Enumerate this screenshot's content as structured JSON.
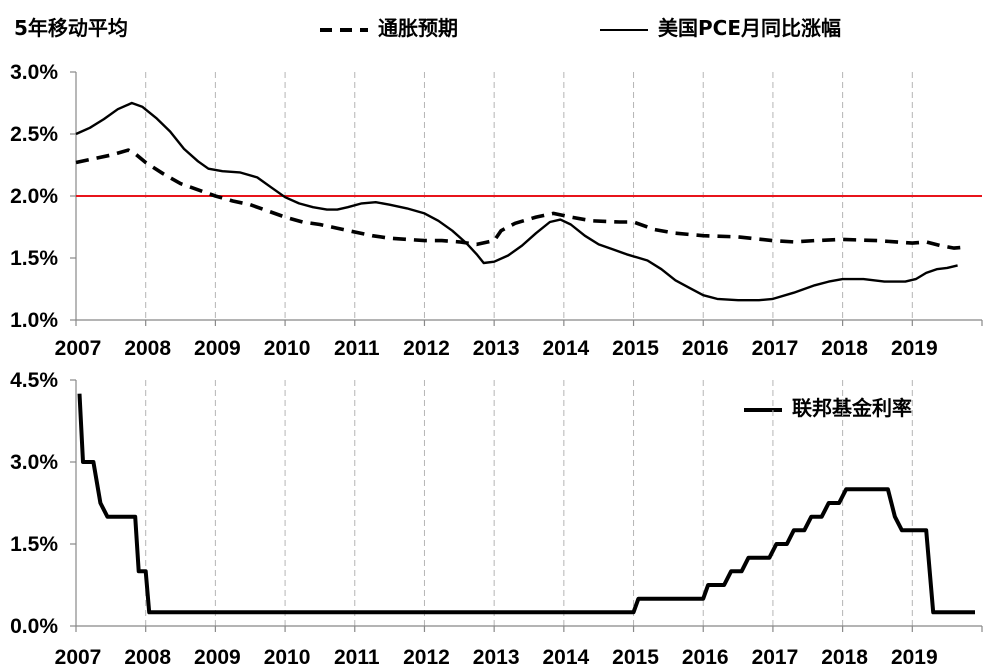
{
  "chart_data": [
    {
      "type": "line",
      "ylabel": "5年移动平均",
      "years": [
        "2007",
        "2008",
        "2009",
        "2010",
        "2011",
        "2012",
        "2013",
        "2014",
        "2015",
        "2016",
        "2017",
        "2018",
        "2019"
      ],
      "yticks": [
        "1.0%",
        "1.5%",
        "2.0%",
        "2.5%",
        "3.0%"
      ],
      "ylim": [
        1.0,
        3.0
      ],
      "xlim": [
        2007.0,
        2020.0
      ],
      "grid": "vertical dashed gridlines at each year",
      "reference_line": {
        "y": 2.0,
        "color": "#e8141b"
      },
      "series": [
        {
          "name": "通胀预期",
          "style": "dashed",
          "color": "#000000",
          "points": [
            [
              2007.0,
              2.27
            ],
            [
              2007.25,
              2.3
            ],
            [
              2007.5,
              2.33
            ],
            [
              2007.75,
              2.37
            ],
            [
              2007.85,
              2.34
            ],
            [
              2008.0,
              2.27
            ],
            [
              2008.25,
              2.18
            ],
            [
              2008.5,
              2.1
            ],
            [
              2008.75,
              2.05
            ],
            [
              2009.0,
              2.0
            ],
            [
              2009.25,
              1.96
            ],
            [
              2009.5,
              1.93
            ],
            [
              2009.75,
              1.88
            ],
            [
              2010.0,
              1.83
            ],
            [
              2010.25,
              1.79
            ],
            [
              2010.5,
              1.77
            ],
            [
              2010.75,
              1.74
            ],
            [
              2011.0,
              1.71
            ],
            [
              2011.25,
              1.68
            ],
            [
              2011.5,
              1.66
            ],
            [
              2011.75,
              1.65
            ],
            [
              2012.0,
              1.64
            ],
            [
              2012.25,
              1.64
            ],
            [
              2012.5,
              1.63
            ],
            [
              2012.75,
              1.61
            ],
            [
              2013.0,
              1.64
            ],
            [
              2013.1,
              1.72
            ],
            [
              2013.3,
              1.78
            ],
            [
              2013.6,
              1.83
            ],
            [
              2013.85,
              1.86
            ],
            [
              2014.1,
              1.83
            ],
            [
              2014.4,
              1.8
            ],
            [
              2014.8,
              1.79
            ],
            [
              2015.0,
              1.79
            ],
            [
              2015.3,
              1.73
            ],
            [
              2015.6,
              1.7
            ],
            [
              2016.0,
              1.68
            ],
            [
              2016.5,
              1.67
            ],
            [
              2017.0,
              1.64
            ],
            [
              2017.3,
              1.63
            ],
            [
              2017.6,
              1.64
            ],
            [
              2018.0,
              1.65
            ],
            [
              2018.5,
              1.64
            ],
            [
              2019.0,
              1.62
            ],
            [
              2019.2,
              1.63
            ],
            [
              2019.4,
              1.6
            ],
            [
              2019.6,
              1.58
            ],
            [
              2019.8,
              1.59
            ]
          ]
        },
        {
          "name": "美国PCE月同比涨幅",
          "style": "solid",
          "color": "#000000",
          "points": [
            [
              2007.0,
              2.5
            ],
            [
              2007.2,
              2.55
            ],
            [
              2007.4,
              2.62
            ],
            [
              2007.6,
              2.7
            ],
            [
              2007.8,
              2.75
            ],
            [
              2007.95,
              2.72
            ],
            [
              2008.15,
              2.63
            ],
            [
              2008.35,
              2.52
            ],
            [
              2008.55,
              2.38
            ],
            [
              2008.75,
              2.28
            ],
            [
              2008.9,
              2.22
            ],
            [
              2009.1,
              2.2
            ],
            [
              2009.35,
              2.19
            ],
            [
              2009.6,
              2.15
            ],
            [
              2009.8,
              2.07
            ],
            [
              2010.0,
              1.99
            ],
            [
              2010.2,
              1.94
            ],
            [
              2010.4,
              1.91
            ],
            [
              2010.6,
              1.89
            ],
            [
              2010.75,
              1.89
            ],
            [
              2010.9,
              1.91
            ],
            [
              2011.1,
              1.94
            ],
            [
              2011.3,
              1.95
            ],
            [
              2011.5,
              1.93
            ],
            [
              2011.75,
              1.9
            ],
            [
              2012.0,
              1.86
            ],
            [
              2012.2,
              1.8
            ],
            [
              2012.4,
              1.72
            ],
            [
              2012.6,
              1.62
            ],
            [
              2012.75,
              1.53
            ],
            [
              2012.85,
              1.46
            ],
            [
              2013.0,
              1.47
            ],
            [
              2013.2,
              1.52
            ],
            [
              2013.4,
              1.6
            ],
            [
              2013.6,
              1.7
            ],
            [
              2013.8,
              1.79
            ],
            [
              2013.95,
              1.81
            ],
            [
              2014.1,
              1.77
            ],
            [
              2014.3,
              1.68
            ],
            [
              2014.5,
              1.61
            ],
            [
              2014.7,
              1.57
            ],
            [
              2014.9,
              1.53
            ],
            [
              2015.2,
              1.48
            ],
            [
              2015.4,
              1.41
            ],
            [
              2015.6,
              1.32
            ],
            [
              2015.8,
              1.26
            ],
            [
              2016.0,
              1.2
            ],
            [
              2016.2,
              1.17
            ],
            [
              2016.5,
              1.16
            ],
            [
              2016.8,
              1.16
            ],
            [
              2017.0,
              1.17
            ],
            [
              2017.3,
              1.22
            ],
            [
              2017.6,
              1.28
            ],
            [
              2017.8,
              1.31
            ],
            [
              2018.0,
              1.33
            ],
            [
              2018.3,
              1.33
            ],
            [
              2018.6,
              1.31
            ],
            [
              2018.9,
              1.31
            ],
            [
              2019.05,
              1.33
            ],
            [
              2019.2,
              1.38
            ],
            [
              2019.35,
              1.41
            ],
            [
              2019.5,
              1.42
            ],
            [
              2019.65,
              1.44
            ]
          ]
        }
      ]
    },
    {
      "type": "line",
      "years": [
        "2007",
        "2008",
        "2009",
        "2010",
        "2011",
        "2012",
        "2013",
        "2014",
        "2015",
        "2016",
        "2017",
        "2018",
        "2019"
      ],
      "yticks": [
        "0.0%",
        "1.5%",
        "3.0%",
        "4.5%"
      ],
      "ylim": [
        0,
        4.5
      ],
      "xlim": [
        2007.0,
        2020.0
      ],
      "grid": "vertical dashed gridlines at each year",
      "series": [
        {
          "name": "联邦基金利率",
          "style": "solid",
          "color": "#000000",
          "points": [
            [
              2007.05,
              4.25
            ],
            [
              2007.1,
              3.0
            ],
            [
              2007.25,
              3.0
            ],
            [
              2007.35,
              2.25
            ],
            [
              2007.45,
              2.0
            ],
            [
              2007.85,
              2.0
            ],
            [
              2007.9,
              1.0
            ],
            [
              2008.0,
              1.0
            ],
            [
              2008.05,
              0.25
            ],
            [
              2015.0,
              0.25
            ],
            [
              2015.07,
              0.5
            ],
            [
              2016.0,
              0.5
            ],
            [
              2016.07,
              0.75
            ],
            [
              2016.3,
              0.75
            ],
            [
              2016.4,
              1.0
            ],
            [
              2016.55,
              1.0
            ],
            [
              2016.65,
              1.25
            ],
            [
              2016.95,
              1.25
            ],
            [
              2017.05,
              1.5
            ],
            [
              2017.2,
              1.5
            ],
            [
              2017.3,
              1.75
            ],
            [
              2017.45,
              1.75
            ],
            [
              2017.55,
              2.0
            ],
            [
              2017.7,
              2.0
            ],
            [
              2017.8,
              2.25
            ],
            [
              2017.95,
              2.25
            ],
            [
              2018.05,
              2.5
            ],
            [
              2018.65,
              2.5
            ],
            [
              2018.75,
              2.0
            ],
            [
              2018.85,
              1.75
            ],
            [
              2019.2,
              1.75
            ],
            [
              2019.3,
              0.25
            ],
            [
              2019.9,
              0.25
            ]
          ]
        }
      ]
    }
  ]
}
